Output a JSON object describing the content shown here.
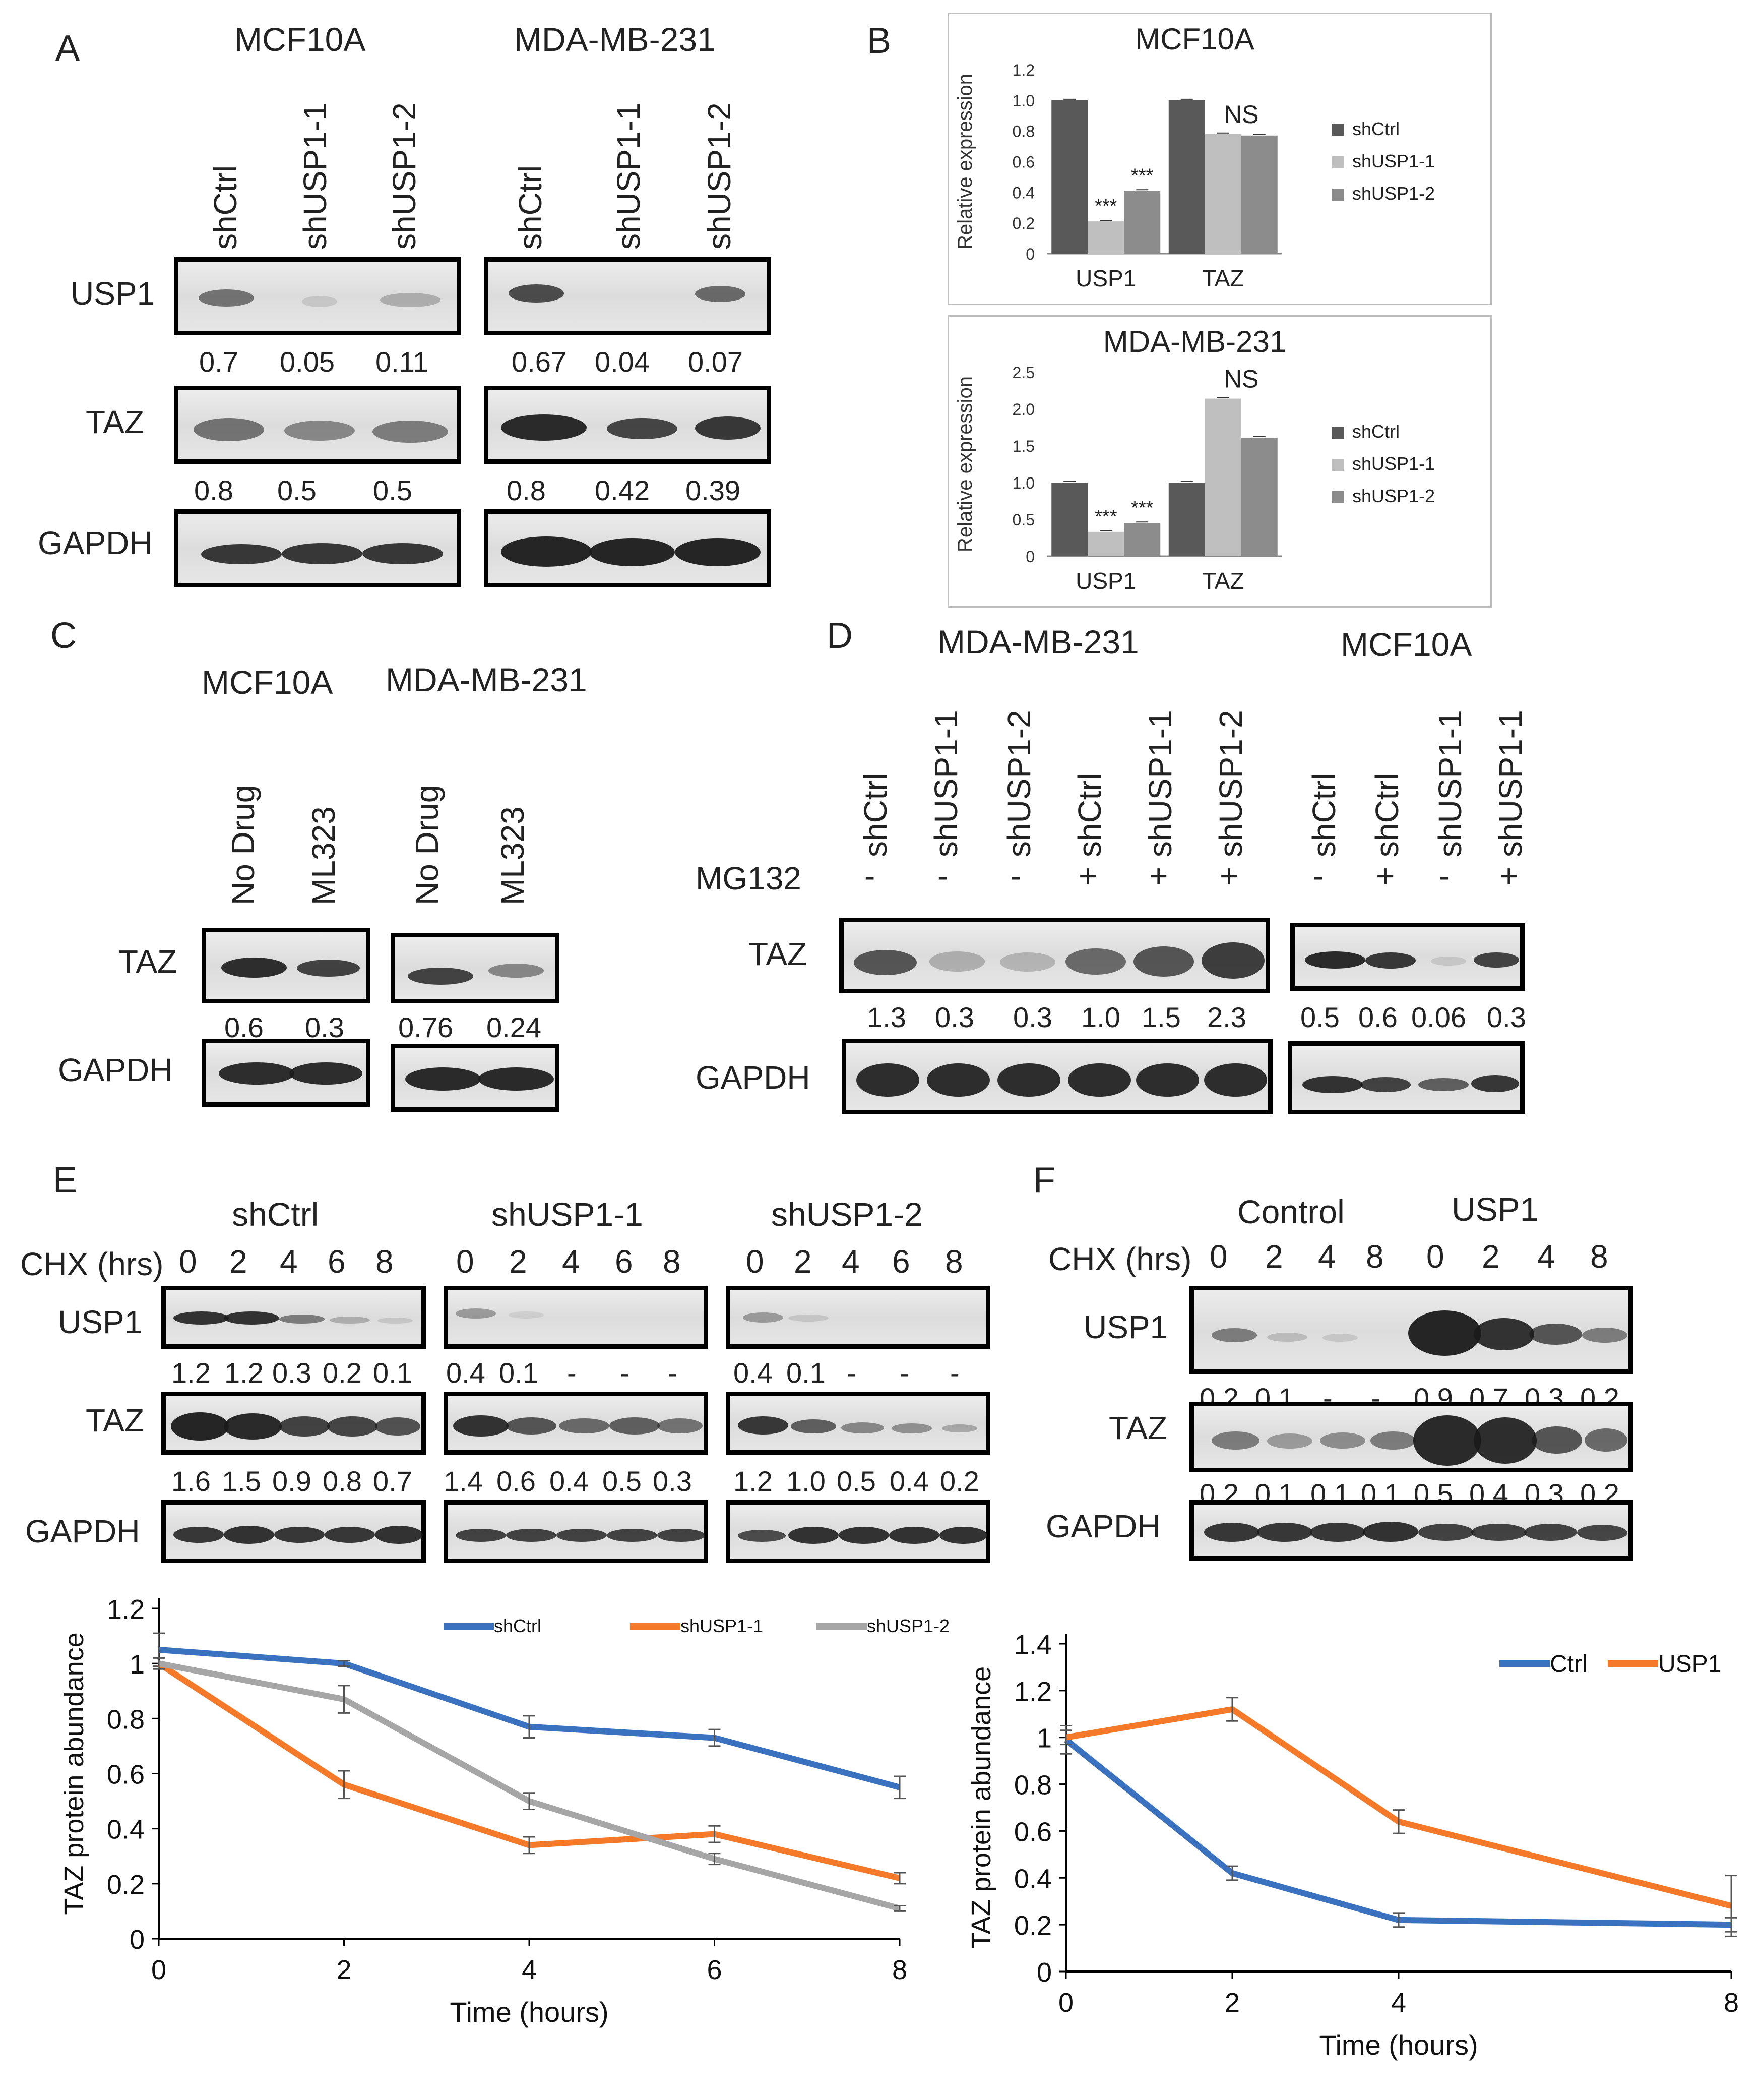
{
  "panels": {
    "A": "A",
    "B": "B",
    "C": "C",
    "D": "D",
    "E": "E",
    "F": "F"
  },
  "A": {
    "cell_lines": [
      "MCF10A",
      "MDA-MB-231"
    ],
    "lanes": [
      "shCtrl",
      "shUSP1-1",
      "shUSP1-2"
    ],
    "rows": [
      "USP1",
      "TAZ",
      "GAPDH"
    ],
    "usp1_quant": {
      "MCF10A": [
        "0.7",
        "0.05",
        "0.11"
      ],
      "MDA-MB-231": [
        "0.67",
        "0.04",
        "0.07"
      ]
    },
    "taz_quant": {
      "MCF10A": [
        "0.8",
        "0.5",
        "0.5"
      ],
      "MDA-MB-231": [
        "0.8",
        "0.42",
        "0.39"
      ]
    }
  },
  "C": {
    "cell_lines": [
      "MCF10A",
      "MDA-MB-231"
    ],
    "lanes": [
      "No Drug",
      "ML323"
    ],
    "rows": [
      "TAZ",
      "GAPDH"
    ],
    "taz_quant": [
      "0.6",
      "0.3",
      "0.76",
      "0.24"
    ]
  },
  "D": {
    "cell_lines": [
      "MDA-MB-231",
      "MCF10A"
    ],
    "lanes_left": [
      "shCtrl",
      "shUSP1-1",
      "shUSP1-2",
      "shCtrl",
      "shUSP1-1",
      "shUSP1-2"
    ],
    "lanes_right": [
      "shCtrl",
      "shCtrl",
      "shUSP1-1",
      "shUSP1-1"
    ],
    "mg132_label": "MG132",
    "mg132_left": [
      "-",
      "-",
      "-",
      "+",
      "+",
      "+"
    ],
    "mg132_right": [
      "-",
      "+",
      "-",
      "+"
    ],
    "rows": [
      "TAZ",
      "GAPDH"
    ],
    "taz_quant_left": [
      "1.3",
      "0.3",
      "0.3",
      "1.0",
      "1.5",
      "2.3"
    ],
    "taz_quant_right": [
      "0.5",
      "0.6",
      "0.06",
      "0.3"
    ]
  },
  "E": {
    "groups": [
      "shCtrl",
      "shUSP1-1",
      "shUSP1-2"
    ],
    "chx_label": "CHX (hrs)",
    "times": [
      "0",
      "2",
      "4",
      "6",
      "8"
    ],
    "rows": [
      "USP1",
      "TAZ",
      "GAPDH"
    ],
    "usp1_quant": [
      [
        "1.2",
        "1.2",
        "0.3",
        "0.2",
        "0.1"
      ],
      [
        "0.4",
        "0.1",
        "-",
        "-",
        "-"
      ],
      [
        "0.4",
        "0.1",
        "-",
        "-",
        "-"
      ]
    ],
    "taz_quant": [
      [
        "1.6",
        "1.5",
        "0.9",
        "0.8",
        "0.7"
      ],
      [
        "1.4",
        "0.6",
        "0.4",
        "0.5",
        "0.3"
      ],
      [
        "1.2",
        "1.0",
        "0.5",
        "0.4",
        "0.2"
      ]
    ]
  },
  "F": {
    "groups": [
      "Control",
      "USP1"
    ],
    "chx_label": "CHX (hrs)",
    "times": [
      "0",
      "2",
      "4",
      "8",
      "0",
      "2",
      "4",
      "8"
    ],
    "rows": [
      "USP1",
      "TAZ",
      "GAPDH"
    ],
    "usp1_quant": [
      "0.2",
      "0.1",
      "-",
      "-",
      "0.9",
      "0.7",
      "0.3",
      "0.2"
    ],
    "taz_quant": [
      "0.2",
      "0.1",
      "0.1",
      "0.1",
      "0.5",
      "0.4",
      "0.3",
      "0.2"
    ]
  },
  "colors": {
    "dark": "#595959",
    "light": "#bfbfbf",
    "mid": "#8c8c8c",
    "blue": "#3a72c0",
    "orange": "#f47a2a",
    "gray": "#a6a6a6"
  },
  "chart_data": [
    {
      "type": "bar",
      "panel": "B",
      "title": "MCF10A",
      "categories": [
        "USP1",
        "TAZ"
      ],
      "ylabel": "Relative expression",
      "ylim": [
        0,
        1.2
      ],
      "yticks": [
        "0",
        "0.2",
        "0.4",
        "0.6",
        "0.8",
        "1.0",
        "1.2"
      ],
      "series": [
        {
          "name": "shCtrl",
          "values": [
            1.0,
            1.0
          ]
        },
        {
          "name": "shUSP1-1",
          "values": [
            0.21,
            0.78
          ]
        },
        {
          "name": "shUSP1-2",
          "values": [
            0.41,
            0.77
          ]
        }
      ],
      "annotations": [
        "***",
        "***",
        "NS"
      ],
      "legend": "right"
    },
    {
      "type": "bar",
      "panel": "B",
      "title": "MDA-MB-231",
      "categories": [
        "USP1",
        "TAZ"
      ],
      "ylabel": "Relative expression",
      "ylim": [
        0,
        2.5
      ],
      "yticks": [
        "0",
        "0.5",
        "1.0",
        "1.5",
        "2.0",
        "2.5"
      ],
      "series": [
        {
          "name": "shCtrl",
          "values": [
            1.0,
            1.0
          ]
        },
        {
          "name": "shUSP1-1",
          "values": [
            0.33,
            2.14
          ]
        },
        {
          "name": "shUSP1-2",
          "values": [
            0.45,
            1.61
          ]
        }
      ],
      "annotations": [
        "***",
        "***",
        "NS"
      ],
      "legend": "right"
    },
    {
      "type": "line",
      "panel": "E",
      "x": [
        0,
        2,
        4,
        6,
        8
      ],
      "xlabel": "Time (hours)",
      "ylabel": "TAZ protein abundance",
      "ylim": [
        0,
        1.2
      ],
      "xlim": [
        0,
        8
      ],
      "yticks": [
        "0",
        "0.2",
        "0.4",
        "0.6",
        "0.8",
        "1",
        "1.2"
      ],
      "xticks": [
        "0",
        "2",
        "4",
        "6",
        "8"
      ],
      "series": [
        {
          "name": "shCtrl",
          "values": [
            1.05,
            1.0,
            0.77,
            0.73,
            0.55
          ],
          "err": [
            0.06,
            0.01,
            0.04,
            0.03,
            0.04
          ]
        },
        {
          "name": "shUSP1-1",
          "values": [
            1.0,
            0.56,
            0.34,
            0.38,
            0.22
          ],
          "err": [
            0.02,
            0.05,
            0.03,
            0.03,
            0.02
          ]
        },
        {
          "name": "shUSP1-2",
          "values": [
            1.0,
            0.87,
            0.5,
            0.29,
            0.11
          ],
          "err": [
            0.02,
            0.05,
            0.03,
            0.02,
            0.01
          ]
        }
      ],
      "legend": "top"
    },
    {
      "type": "line",
      "panel": "F",
      "x": [
        0,
        2,
        4,
        8
      ],
      "xlabel": "Time (hours)",
      "ylabel": "TAZ protein abundance",
      "ylim": [
        0,
        1.4
      ],
      "xlim": [
        0,
        8
      ],
      "yticks": [
        "0",
        "0.2",
        "0.4",
        "0.6",
        "0.8",
        "1",
        "1.2",
        "1.4"
      ],
      "xticks": [
        "0",
        "2",
        "4",
        "8"
      ],
      "series": [
        {
          "name": "Ctrl",
          "values": [
            0.99,
            0.42,
            0.22,
            0.2
          ],
          "err": [
            0.06,
            0.03,
            0.03,
            0.03
          ]
        },
        {
          "name": "USP1",
          "values": [
            1.0,
            1.12,
            0.64,
            0.28
          ],
          "err": [
            0.03,
            0.05,
            0.05,
            0.13
          ]
        }
      ],
      "legend": "top-right"
    }
  ]
}
